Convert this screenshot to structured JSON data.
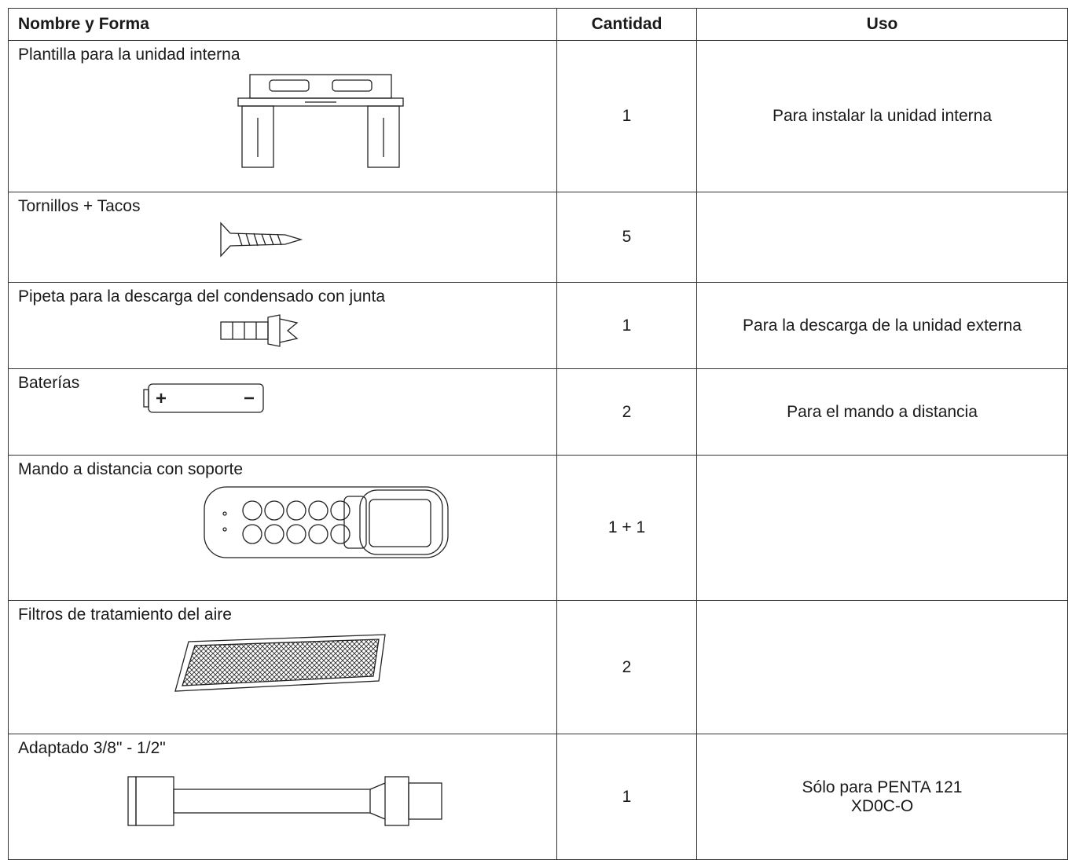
{
  "table": {
    "header": [
      "Nombre y Forma",
      "Cantidad",
      "Uso"
    ],
    "rows": [
      {
        "name": "Plantilla para la unidad interna",
        "quantity": "1",
        "use": [
          "Para instalar la unidad interna"
        ]
      },
      {
        "name": "Tornillos + Tacos",
        "quantity": "5"
      },
      {
        "name": "Pipeta para la descarga del condensado con junta",
        "quantity": "1",
        "use": [
          "Para la descarga de la unidad externa"
        ]
      },
      {
        "name": "Baterías",
        "quantity": "2",
        "use": [
          "Para el mando a distancia"
        ]
      },
      {
        "name": "Mando a distancia con soporte",
        "quantity": "1 + 1"
      },
      {
        "name": "Filtros de tratamiento del aire",
        "quantity": "2"
      },
      {
        "name": "Adaptado  3/8\" - 1/2\"",
        "quantity": "1",
        "use": [
          "Sólo para PENTA 121",
          "XD0C-O"
        ]
      }
    ]
  }
}
